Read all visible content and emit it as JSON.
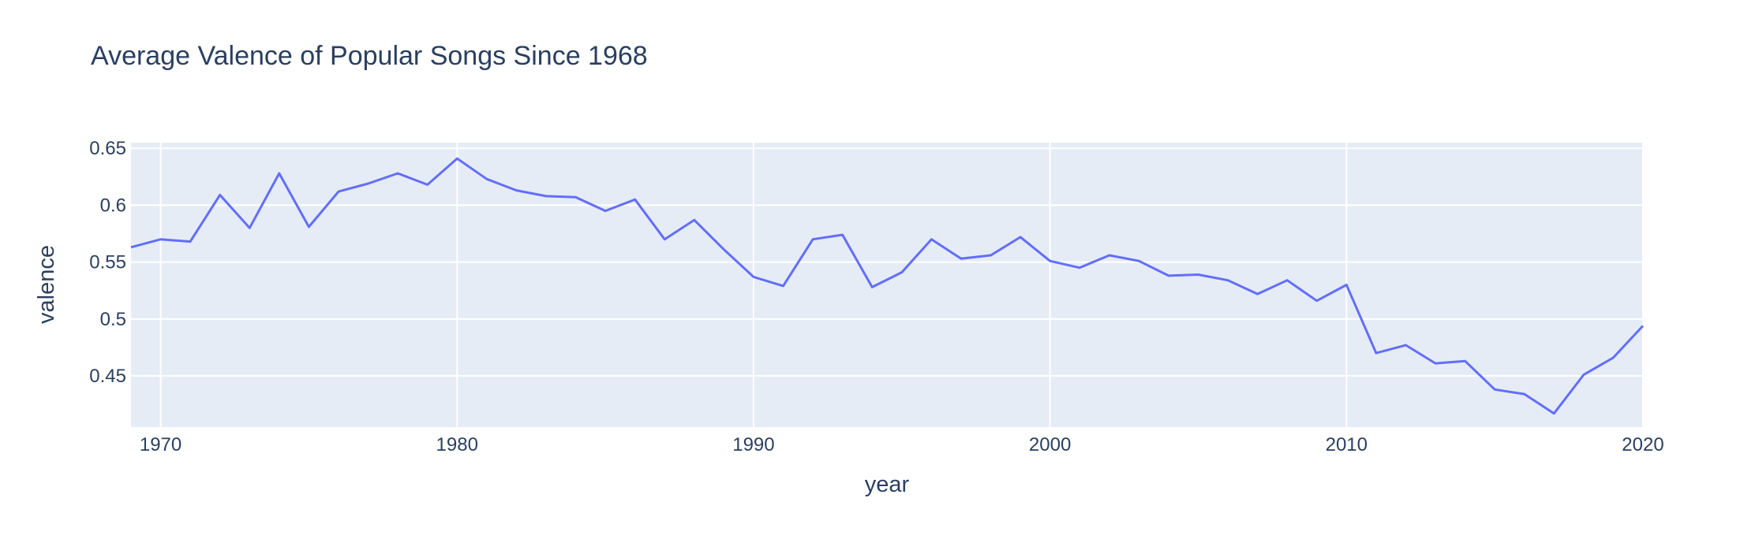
{
  "chart_data": {
    "type": "line",
    "title": "Average Valence of Popular Songs Since 1968",
    "xlabel": "year",
    "ylabel": "valence",
    "xlim": [
      1969,
      2020
    ],
    "ylim": [
      0.405,
      0.655
    ],
    "x_ticks": [
      1970,
      1980,
      1990,
      2000,
      2010,
      2020
    ],
    "y_ticks": [
      0.45,
      0.5,
      0.55,
      0.6,
      0.65
    ],
    "y_tick_labels": [
      "0.45",
      "0.5",
      "0.55",
      "0.6",
      "0.65"
    ],
    "grid": true,
    "line_color": "#636efa",
    "plot_bg": "#e5ecf6",
    "series": [
      {
        "x": [
          1969,
          1970,
          1971,
          1972,
          1973,
          1974,
          1975,
          1976,
          1977,
          1978,
          1979,
          1980,
          1981,
          1982,
          1983,
          1984,
          1985,
          1986,
          1987,
          1988,
          1989,
          1990,
          1991,
          1992,
          1993,
          1994,
          1995,
          1996,
          1997,
          1998,
          1999,
          2000,
          2001,
          2002,
          2003,
          2004,
          2005,
          2006,
          2007,
          2008,
          2009,
          2010,
          2011,
          2012,
          2013,
          2014,
          2015,
          2016,
          2017,
          2018,
          2019,
          2020
        ],
        "values": [
          0.563,
          0.57,
          0.568,
          0.609,
          0.58,
          0.628,
          0.581,
          0.612,
          0.619,
          0.628,
          0.618,
          0.641,
          0.623,
          0.613,
          0.608,
          0.607,
          0.595,
          0.605,
          0.57,
          0.587,
          0.561,
          0.537,
          0.529,
          0.57,
          0.574,
          0.528,
          0.541,
          0.57,
          0.553,
          0.556,
          0.572,
          0.551,
          0.545,
          0.556,
          0.551,
          0.538,
          0.539,
          0.534,
          0.522,
          0.534,
          0.516,
          0.53,
          0.47,
          0.477,
          0.461,
          0.463,
          0.438,
          0.434,
          0.417,
          0.451,
          0.466,
          0.494
        ]
      }
    ]
  }
}
